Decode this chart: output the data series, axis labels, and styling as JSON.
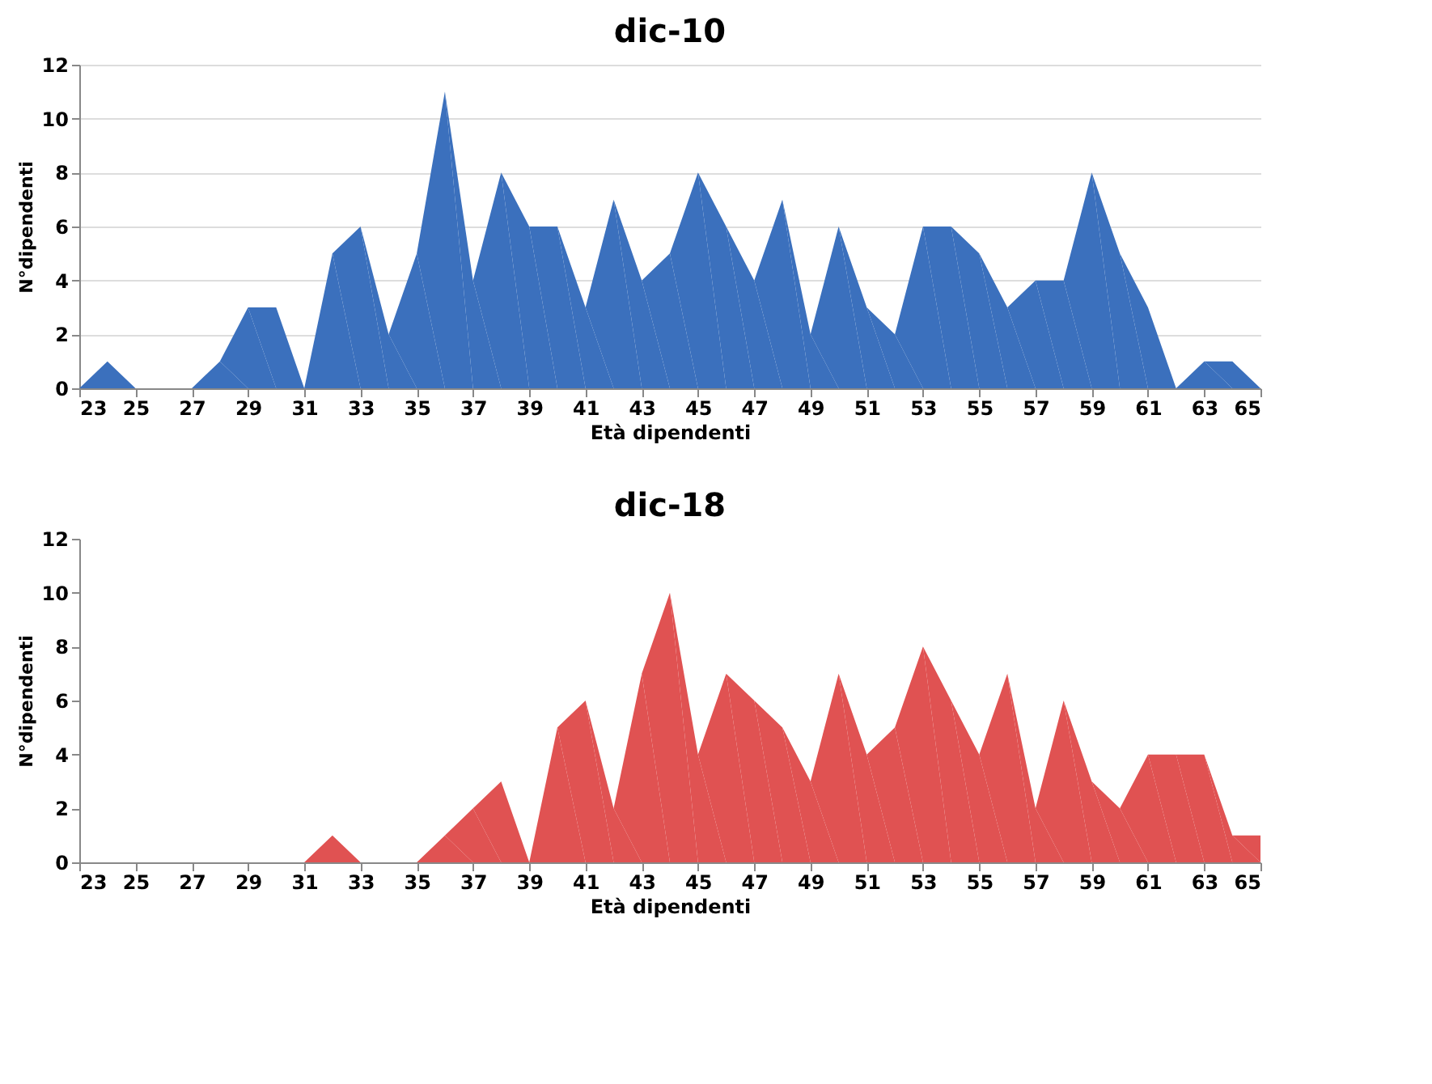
{
  "chart_data": [
    {
      "type": "area",
      "title": "dic-10",
      "xlabel": "Età dipendenti",
      "ylabel": "N°dipendenti",
      "x": [
        23,
        24,
        25,
        26,
        27,
        28,
        29,
        30,
        31,
        32,
        33,
        34,
        35,
        36,
        37,
        38,
        39,
        40,
        41,
        42,
        43,
        44,
        45,
        46,
        47,
        48,
        49,
        50,
        51,
        52,
        53,
        54,
        55,
        56,
        57,
        58,
        59,
        60,
        61,
        62,
        63,
        64,
        65
      ],
      "series": [
        {
          "color": "#3b70bd",
          "values": [
            0,
            1,
            0,
            0,
            0,
            1,
            3,
            3,
            0,
            5,
            6,
            2,
            5,
            11,
            4,
            8,
            6,
            6,
            3,
            7,
            4,
            5,
            8,
            6,
            4,
            7,
            2,
            6,
            3,
            2,
            6,
            6,
            5,
            3,
            4,
            4,
            8,
            5,
            3,
            0,
            1,
            1,
            0
          ]
        }
      ],
      "xlim": [
        23,
        65
      ],
      "xticks": [
        23,
        25,
        27,
        29,
        31,
        33,
        35,
        37,
        39,
        41,
        43,
        45,
        47,
        49,
        51,
        53,
        55,
        57,
        59,
        61,
        63,
        65
      ],
      "ylim": [
        0,
        12
      ],
      "yticks": [
        0,
        2,
        4,
        6,
        8,
        10,
        12
      ],
      "grid": "y"
    },
    {
      "type": "area",
      "title": "dic-18",
      "xlabel": "Età dipendenti",
      "ylabel": "N°dipendenti",
      "x": [
        23,
        24,
        25,
        26,
        27,
        28,
        29,
        30,
        31,
        32,
        33,
        34,
        35,
        36,
        37,
        38,
        39,
        40,
        41,
        42,
        43,
        44,
        45,
        46,
        47,
        48,
        49,
        50,
        51,
        52,
        53,
        54,
        55,
        56,
        57,
        58,
        59,
        60,
        61,
        62,
        63,
        64,
        65
      ],
      "series": [
        {
          "color": "#e05252",
          "values": [
            0,
            0,
            0,
            0,
            0,
            0,
            0,
            0,
            0,
            1,
            0,
            0,
            0,
            1,
            2,
            3,
            0,
            5,
            6,
            2,
            7,
            10,
            4,
            7,
            6,
            5,
            3,
            7,
            4,
            5,
            8,
            6,
            4,
            7,
            2,
            6,
            3,
            2,
            4,
            4,
            4,
            1,
            1
          ]
        }
      ],
      "xlim": [
        23,
        65
      ],
      "xticks": [
        23,
        25,
        27,
        29,
        31,
        33,
        35,
        37,
        39,
        41,
        43,
        45,
        47,
        49,
        51,
        53,
        55,
        57,
        59,
        61,
        63,
        65
      ],
      "ylim": [
        0,
        12
      ],
      "yticks": [
        0,
        2,
        4,
        6,
        8,
        10,
        12
      ],
      "grid": false
    }
  ]
}
